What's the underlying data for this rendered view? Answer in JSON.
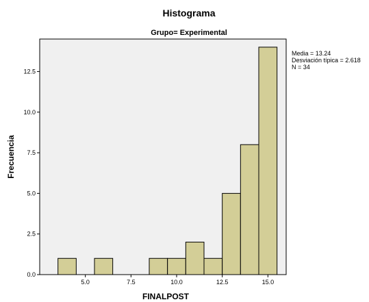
{
  "chart_data": {
    "type": "bar",
    "title": "Histograma",
    "subtitle": "Grupo= Experimental",
    "xlabel": "FINALPOST",
    "ylabel": "Frecuencia",
    "xlim": [
      2.5,
      16.0
    ],
    "ylim": [
      0,
      14.5
    ],
    "bin_width": 1.0,
    "bins": [
      {
        "start": 3.5,
        "end": 4.5,
        "count": 1
      },
      {
        "start": 4.5,
        "end": 5.5,
        "count": 0
      },
      {
        "start": 5.5,
        "end": 6.5,
        "count": 1
      },
      {
        "start": 6.5,
        "end": 7.5,
        "count": 0
      },
      {
        "start": 7.5,
        "end": 8.5,
        "count": 0
      },
      {
        "start": 8.5,
        "end": 9.5,
        "count": 1
      },
      {
        "start": 9.5,
        "end": 10.5,
        "count": 1
      },
      {
        "start": 10.5,
        "end": 11.5,
        "count": 2
      },
      {
        "start": 11.5,
        "end": 12.5,
        "count": 1
      },
      {
        "start": 12.5,
        "end": 13.5,
        "count": 5
      },
      {
        "start": 13.5,
        "end": 14.5,
        "count": 8
      },
      {
        "start": 14.5,
        "end": 15.5,
        "count": 14
      }
    ],
    "x_ticks": [
      {
        "value": 5.0,
        "label": "5.0"
      },
      {
        "value": 7.5,
        "label": "7.5"
      },
      {
        "value": 10.0,
        "label": "10.0"
      },
      {
        "value": 12.5,
        "label": "12.5"
      },
      {
        "value": 15.0,
        "label": "15.0"
      }
    ],
    "y_ticks": [
      {
        "value": 0,
        "label": "0.0"
      },
      {
        "value": 2.5,
        "label": "2.5"
      },
      {
        "value": 5.0,
        "label": "5.0"
      },
      {
        "value": 7.5,
        "label": "7.5"
      },
      {
        "value": 10.0,
        "label": "10.0"
      },
      {
        "value": 12.5,
        "label": "12.5"
      }
    ],
    "stats": {
      "mean": "Media = 13.24",
      "std": "Desviación típica = 2.618",
      "n": "N = 34"
    },
    "grid": false,
    "legend": "none",
    "colors": {
      "bar_fill": "#d3ce97",
      "bar_stroke": "#000000",
      "plot_background": "#f0f0f0"
    }
  }
}
